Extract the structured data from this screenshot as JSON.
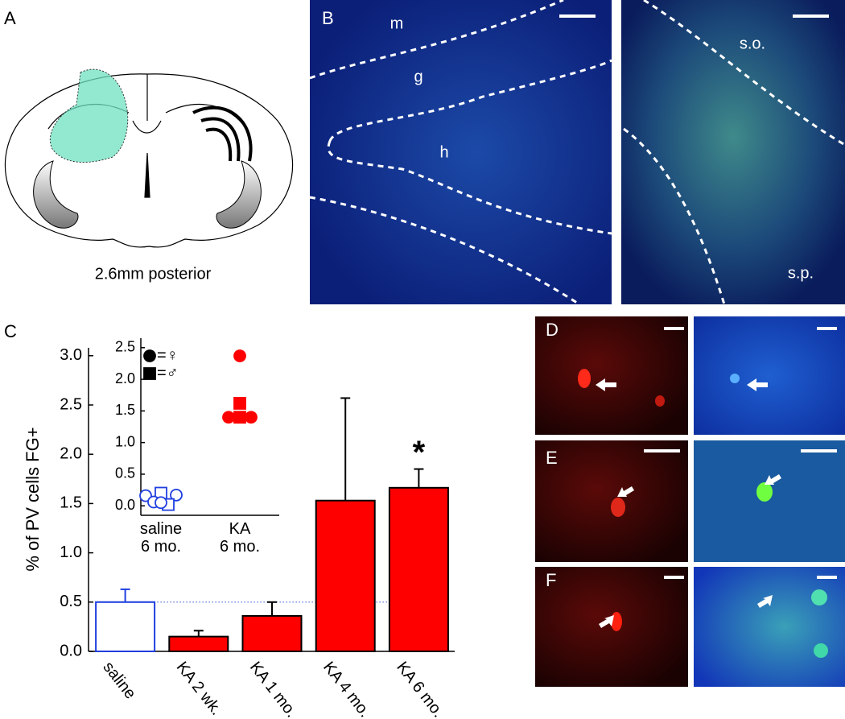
{
  "panel_labels": [
    "A",
    "B",
    "C",
    "D",
    "E",
    "F"
  ],
  "panel_a_caption": "2.6mm posterior",
  "region_labels": [
    "m",
    "g",
    "h",
    "s.o.",
    "s.p."
  ],
  "chart_data": [
    {
      "type": "bar",
      "y_label": "% of PV cells FG+",
      "categories": [
        "saline",
        "KA 2 wk.",
        "KA 1 mo.",
        "KA 4 mo.",
        "KA 6 mo."
      ],
      "values": [
        0.5,
        0.15,
        0.36,
        1.53,
        1.66
      ],
      "errors": [
        0.13,
        0.06,
        0.14,
        1.04,
        0.19
      ],
      "colors": [
        "#ffffff",
        "#ff0000",
        "#ff0000",
        "#ff0000",
        "#ff0000"
      ],
      "edge_colors": [
        "#1f3fdf",
        "#000000",
        "#000000",
        "#000000",
        "#000000"
      ],
      "reference_line": true,
      "annotations": [
        {
          "text": "*",
          "category": 4
        }
      ],
      "ylim": [
        0,
        3.08
      ],
      "yticks": [
        {
          "value": 0,
          "label": "0.0"
        },
        {
          "value": 0.5,
          "label": "0.5"
        },
        {
          "value": 1,
          "label": "1.0"
        },
        {
          "value": 1.5,
          "label": "1.5"
        },
        {
          "value": 2,
          "label": "2.0"
        },
        {
          "value": 2.5,
          "label": "2.5"
        },
        {
          "value": 3,
          "label": "3.0"
        }
      ]
    },
    {
      "type": "scatter",
      "categories": [
        "saline\n6 mo.",
        "KA\n6 mo."
      ],
      "colors": [
        "#1f3fdf",
        "#ff0000"
      ],
      "points": [
        {
          "category": 0,
          "value": 0.16,
          "marker": "circle",
          "filled": false
        },
        {
          "category": 0,
          "value": 0.2,
          "marker": "square",
          "filled": false
        },
        {
          "category": 0,
          "value": 0.17,
          "marker": "circle",
          "filled": false
        },
        {
          "category": 0,
          "value": 0.06,
          "marker": "circle",
          "filled": false
        },
        {
          "category": 0,
          "value": 0.02,
          "marker": "square",
          "filled": false
        },
        {
          "category": 0,
          "value": 0.05,
          "marker": "circle",
          "filled": false
        },
        {
          "category": 1,
          "value": 2.37,
          "marker": "circle",
          "filled": true
        },
        {
          "category": 1,
          "value": 1.62,
          "marker": "square",
          "filled": true
        },
        {
          "category": 1,
          "value": 1.4,
          "marker": "circle",
          "filled": true
        },
        {
          "category": 1,
          "value": 1.4,
          "marker": "square",
          "filled": true
        },
        {
          "category": 1,
          "value": 1.4,
          "marker": "circle",
          "filled": true
        }
      ],
      "legend": [
        {
          "marker": "circle",
          "label": "=♀"
        },
        {
          "marker": "square",
          "label": "=♂"
        }
      ],
      "ylim": [
        -0.15,
        2.65
      ],
      "yticks": [
        {
          "value": 0,
          "label": "0.0"
        },
        {
          "value": 0.5,
          "label": "0.5"
        },
        {
          "value": 1,
          "label": "1.0"
        },
        {
          "value": 1.5,
          "label": "1.5"
        },
        {
          "value": 2,
          "label": "2.0"
        },
        {
          "value": 2.5,
          "label": "2.5"
        }
      ]
    }
  ]
}
